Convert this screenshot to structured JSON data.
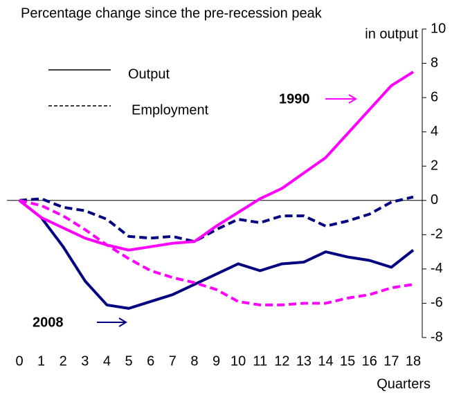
{
  "chart_data": {
    "type": "line",
    "title_lines": [
      "Percentage change since the pre-recession peak",
      "in output"
    ],
    "x_label": "Quarters",
    "x": [
      0,
      1,
      2,
      3,
      4,
      5,
      6,
      7,
      8,
      9,
      10,
      11,
      12,
      13,
      14,
      15,
      16,
      17,
      18
    ],
    "xlim": [
      0,
      18
    ],
    "ylim": [
      -8,
      10
    ],
    "yticks": [
      -8,
      -6,
      -4,
      -2,
      0,
      2,
      4,
      6,
      8,
      10
    ],
    "legend": [
      {
        "label": "Output",
        "dash": "solid"
      },
      {
        "label": "Employment",
        "dash": "dashed"
      }
    ],
    "annotations": [
      {
        "text": "1990",
        "color": "#ff00ff"
      },
      {
        "text": "2008",
        "color": "#000080"
      }
    ],
    "series": [
      {
        "group": 1,
        "dash": "solid",
        "color": "#000080",
        "values": [
          0,
          -1.0,
          -2.7,
          -4.7,
          -6.1,
          -6.3,
          -5.9,
          -5.5,
          -4.9,
          -4.3,
          -3.7,
          -4.1,
          -3.7,
          -3.6,
          -3.0,
          -3.3,
          -3.5,
          -3.9,
          -2.9
        ]
      },
      {
        "group": 1,
        "dash": "dashed",
        "color": "#000080",
        "values": [
          0,
          0.1,
          -0.4,
          -0.6,
          -1.1,
          -2.1,
          -2.2,
          -2.1,
          -2.4,
          -1.7,
          -1.1,
          -1.3,
          -0.9,
          -0.9,
          -1.5,
          -1.2,
          -0.8,
          -0.1,
          0.2
        ]
      },
      {
        "group": 0,
        "dash": "solid",
        "color": "#ff00ff",
        "values": [
          0,
          -1.0,
          -1.6,
          -2.2,
          -2.6,
          -2.9,
          -2.7,
          -2.5,
          -2.4,
          -1.5,
          -0.7,
          0.1,
          0.7,
          1.6,
          2.5,
          3.9,
          5.3,
          6.7,
          7.5
        ]
      },
      {
        "group": 0,
        "dash": "dashed",
        "color": "#ff00ff",
        "values": [
          0,
          -0.3,
          -0.9,
          -1.7,
          -2.6,
          -3.4,
          -4.1,
          -4.5,
          -4.8,
          -5.2,
          -5.9,
          -6.1,
          -6.1,
          -6.0,
          -6.0,
          -5.7,
          -5.5,
          -5.1,
          -4.9
        ]
      }
    ]
  }
}
